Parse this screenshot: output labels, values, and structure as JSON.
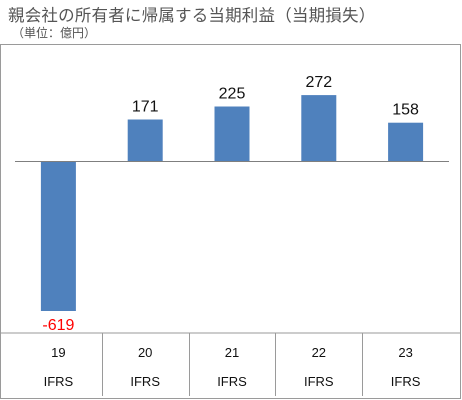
{
  "title": "親会社の所有者に帰属する当期利益（当期損失）",
  "subtitle": "（単位：億円）",
  "colors": {
    "bar": "#4F81BD",
    "negative_label": "#FF0000",
    "axis": "#7F7F7F"
  },
  "chart_data": {
    "type": "bar",
    "title": "親会社の所有者に帰属する当期利益（当期損失）",
    "unit": "億円",
    "categories": [
      "19",
      "20",
      "21",
      "22",
      "23"
    ],
    "category_sublabels": [
      "IFRS",
      "IFRS",
      "IFRS",
      "IFRS",
      "IFRS"
    ],
    "values": [
      -619,
      171,
      225,
      272,
      158
    ],
    "data_labels": [
      "-619",
      "171",
      "225",
      "272",
      "158"
    ],
    "ylim": [
      -619,
      272
    ],
    "grid": false,
    "legend": "none"
  }
}
